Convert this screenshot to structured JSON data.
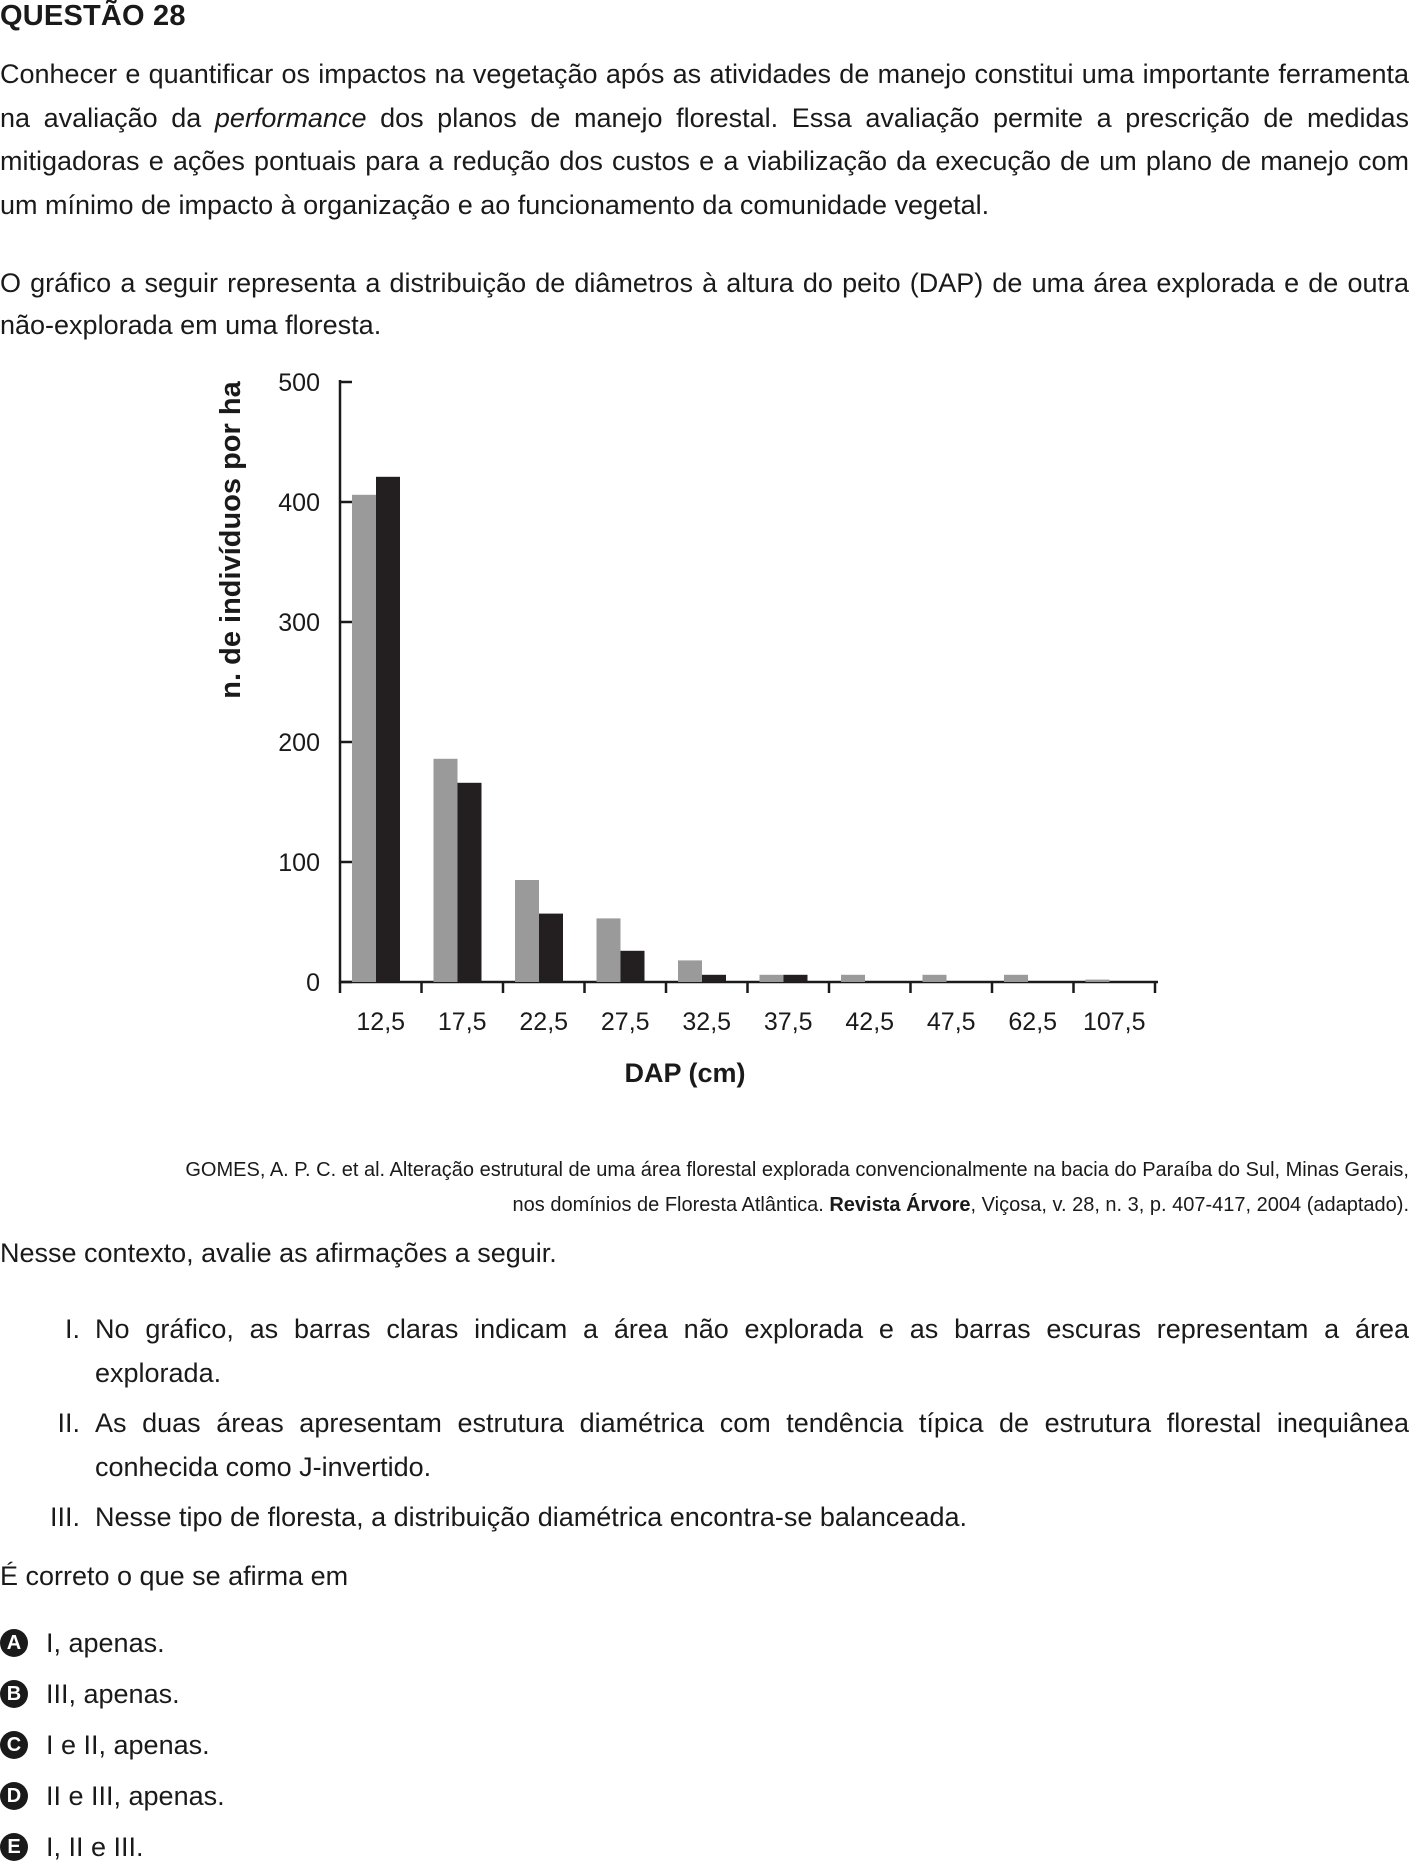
{
  "question": {
    "title": "QUESTÃO 28",
    "paragraph1_before": "Conhecer e quantificar os impactos na vegetação após as atividades de manejo constitui uma importante ferramenta na avaliação da ",
    "paragraph1_italic": "performance",
    "paragraph1_after": " dos planos de manejo florestal. Essa avaliação permite a prescrição de medidas mitigadoras e ações pontuais para a redução dos custos e a viabilização da execução de um plano de manejo com um mínimo de impacto à organização e ao funcionamento da comunidade vegetal.",
    "paragraph2": "O gráfico a seguir representa a distribuição de diâmetros à altura do peito (DAP) de uma área explorada e de outra não-explorada em uma floresta.",
    "source_line1": "GOMES, A. P. C. et al. Alteração estrutural de uma área florestal explorada convencionalmente na bacia do Paraíba do Sul, Minas Gerais,",
    "source_line2_before": "nos domínios de Floresta Atlântica. ",
    "source_line2_bold": "Revista Árvore",
    "source_line2_after": ", Viçosa, v. 28, n. 3, p. 407-417, 2004 (adaptado).",
    "context": "Nesse contexto, avalie as afirmações a seguir.",
    "statements": [
      {
        "num": "I.",
        "text": "No gráfico, as barras claras indicam a área não explorada e as barras escuras representam a área explorada."
      },
      {
        "num": "II.",
        "text": "As duas áreas apresentam estrutura diamétrica com tendência típica de estrutura florestal inequiânea conhecida como  J-invertido."
      },
      {
        "num": "III.",
        "text": "Nesse tipo de floresta, a distribuição diamétrica encontra-se balanceada."
      }
    ],
    "prompt": "É correto o que se afirma em",
    "options": [
      {
        "letter": "A",
        "text": "I, apenas."
      },
      {
        "letter": "B",
        "text": "III, apenas."
      },
      {
        "letter": "C",
        "text": "I e II, apenas."
      },
      {
        "letter": "D",
        "text": "II e III, apenas."
      },
      {
        "letter": "E",
        "text": "I, II e III."
      }
    ]
  },
  "chart_data": {
    "type": "bar",
    "xlabel": "DAP (cm)",
    "ylabel": "n. de indivíduos por ha",
    "categories": [
      "12,5",
      "17,5",
      "22,5",
      "27,5",
      "32,5",
      "37,5",
      "42,5",
      "47,5",
      "62,5",
      "107,5"
    ],
    "series": [
      {
        "color": "#9a9a9a",
        "values": [
          406,
          186,
          85,
          53,
          18,
          6,
          6,
          6,
          6,
          2
        ]
      },
      {
        "color": "#231f20",
        "values": [
          421,
          166,
          57,
          26,
          6,
          6,
          0,
          0,
          0,
          0
        ]
      }
    ],
    "ylim": [
      0,
      500
    ],
    "yticks": [
      0,
      100,
      200,
      300,
      400,
      500
    ],
    "grid": false,
    "legend": "none"
  }
}
